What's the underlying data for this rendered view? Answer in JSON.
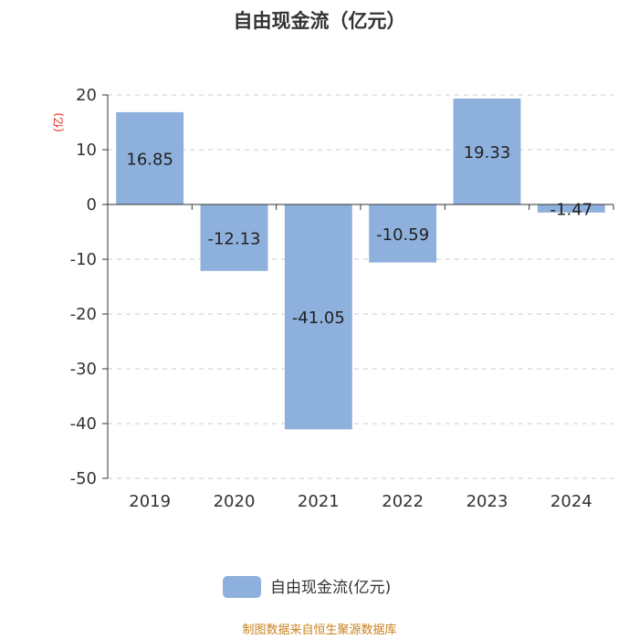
{
  "chart_data": {
    "type": "bar",
    "title": "自由现金流（亿元）",
    "unit_label": "(亿)",
    "categories": [
      "2019",
      "2020",
      "2021",
      "2022",
      "2023",
      "2024"
    ],
    "series": [
      {
        "name": "自由现金流(亿元)",
        "values": [
          16.85,
          -12.13,
          -41.05,
          -10.59,
          19.33,
          -1.47
        ]
      }
    ],
    "data_labels": [
      "16.85",
      "-12.13",
      "-41.05",
      "-10.59",
      "19.33",
      "-1.47"
    ],
    "ylim": [
      -50,
      20
    ],
    "yticks": [
      20,
      10,
      0,
      -10,
      -20,
      -30,
      -40,
      -50
    ],
    "ytick_labels": [
      "20",
      "10",
      "0",
      "-10",
      "-20",
      "-30",
      "-40",
      "-50"
    ],
    "grid": true,
    "legend_position": "bottom",
    "bar_color": "#8eb0dc",
    "grid_color": "#cccccc",
    "axis_color": "#333333"
  },
  "footer": {
    "source": "制图数据来自恒生聚源数据库"
  }
}
